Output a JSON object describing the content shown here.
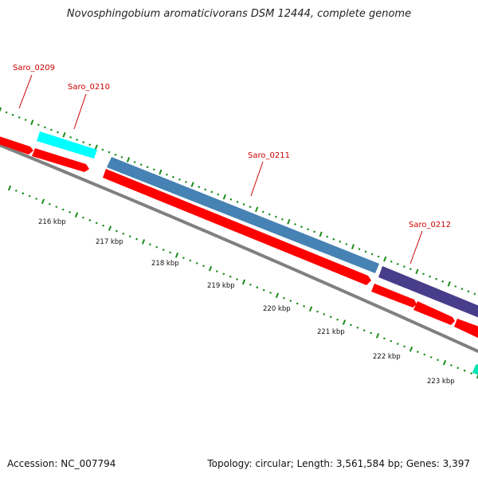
{
  "title": "Novosphingobium aromaticivorans DSM 12444, complete genome",
  "footer": {
    "accession": "Accession: NC_007794",
    "summary": "Topology: circular; Length: 3,561,584 bp; Genes: 3,397"
  },
  "colors": {
    "backbone": "#808080",
    "tick": "#1a8c1a",
    "gene_label": "#cc0000",
    "scale_label": "#111111",
    "cds_red": "#ff0000",
    "cyan": "#00ffff",
    "steelblue": "#4682b4",
    "darkslateblue": "#483d8b",
    "mediumspringgreen": "#00e5b0"
  },
  "genes": [
    {
      "id": "Saro_0209",
      "label": "Saro_0209"
    },
    {
      "id": "Saro_0210",
      "label": "Saro_0210"
    },
    {
      "id": "Saro_0211",
      "label": "Saro_0211"
    },
    {
      "id": "Saro_0212",
      "label": "Saro_0212"
    }
  ],
  "scale_labels": [
    "216 kbp",
    "217 kbp",
    "218 kbp",
    "219 kbp",
    "220 kbp",
    "221 kbp",
    "222 kbp",
    "223 kbp"
  ]
}
